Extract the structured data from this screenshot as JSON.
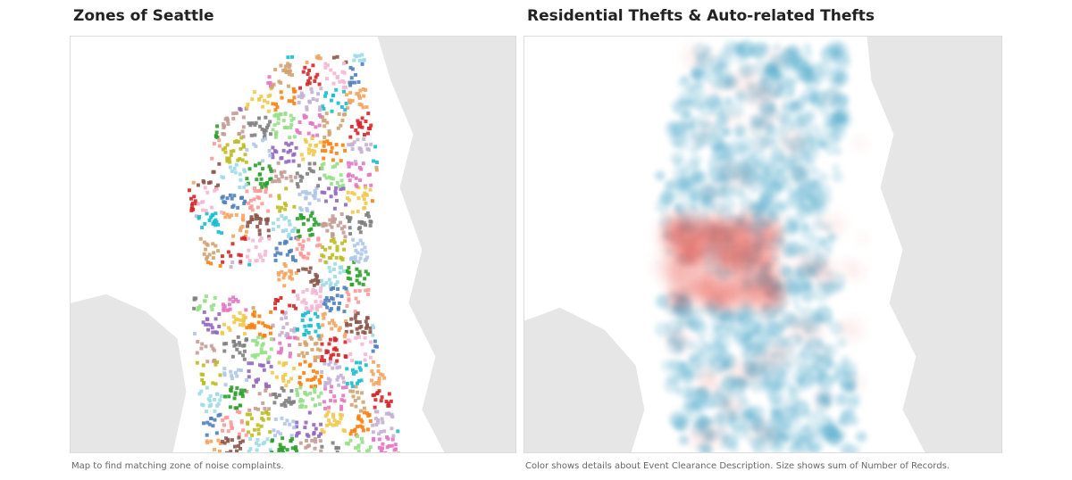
{
  "left_panel": {
    "title": "Zones of Seattle",
    "caption": "Map to find matching zone of noise complaints."
  },
  "right_panel": {
    "title": "Residential Thefts & Auto-related Thefts",
    "caption": "Color shows details about Event Clearance Description.  Size shows sum of Number of Records."
  },
  "colors": {
    "land": "#e6e6e6",
    "water": "#ffffff",
    "park": "#d8dcd8",
    "theft_blue": "#3a9fc4",
    "theft_red": "#e8534a",
    "zone_palette": [
      "#4f81bd",
      "#aec7e8",
      "#ff7f0e",
      "#f4a460",
      "#2ca02c",
      "#98df8a",
      "#d62728",
      "#ff9896",
      "#9467bd",
      "#c5b0d5",
      "#8c564b",
      "#c49c94",
      "#e377c2",
      "#f7b6d2",
      "#bcbd22",
      "#f2c94c",
      "#17becf",
      "#9edae5",
      "#7f7f7f",
      "#d4a373"
    ]
  }
}
